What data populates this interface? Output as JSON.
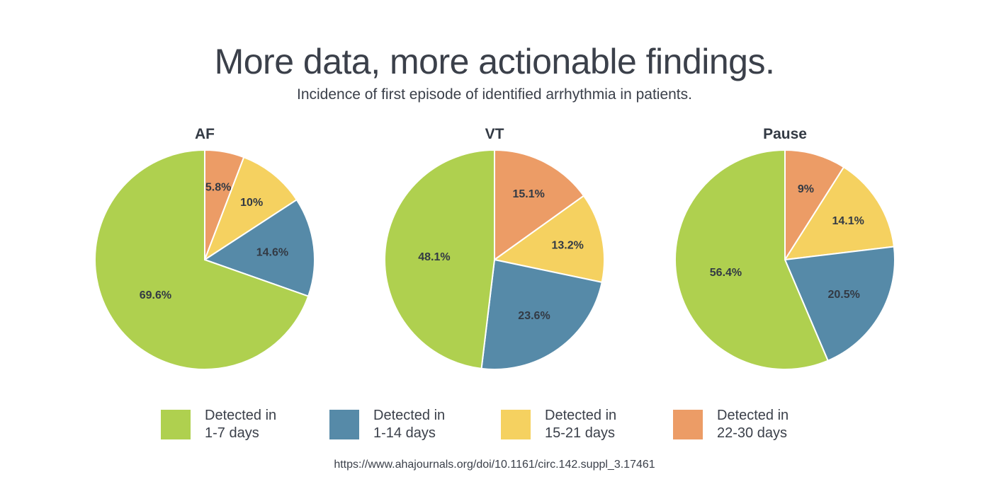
{
  "header": {
    "title": "More data, more actionable findings.",
    "subtitle": "Incidence of first episode of identified arrhythmia in patients."
  },
  "chart_data": [
    {
      "type": "pie",
      "title": "AF",
      "categories": [
        "Detected in 1-7 days",
        "Detected in 1-14 days",
        "Detected in 15-21 days",
        "Detected in 22-30 days"
      ],
      "values": [
        69.6,
        14.6,
        10,
        5.8
      ],
      "labels": [
        "69.6%",
        "14.6%",
        "10%",
        "5.8%"
      ]
    },
    {
      "type": "pie",
      "title": "VT",
      "categories": [
        "Detected in 1-7 days",
        "Detected in 1-14 days",
        "Detected in 15-21 days",
        "Detected in 22-30 days"
      ],
      "values": [
        48.1,
        23.6,
        13.2,
        15.1
      ],
      "labels": [
        "48.1%",
        "23.6%",
        "13.2%",
        "15.1%"
      ]
    },
    {
      "type": "pie",
      "title": "Pause",
      "categories": [
        "Detected in 1-7 days",
        "Detected in 1-14 days",
        "Detected in 15-21 days",
        "Detected in 22-30 days"
      ],
      "values": [
        56.4,
        20.5,
        14.1,
        9
      ],
      "labels": [
        "56.4%",
        "20.5%",
        "14.1%",
        "9%"
      ]
    }
  ],
  "colors": {
    "days_1_7": "#afd04f",
    "days_1_14": "#568aa8",
    "days_15_21": "#f5d160",
    "days_22_30": "#ec9c66"
  },
  "legend": [
    {
      "line1": "Detected in",
      "line2": "1-7 days",
      "color": "#afd04f"
    },
    {
      "line1": "Detected in",
      "line2": "1-14 days",
      "color": "#568aa8"
    },
    {
      "line1": "Detected in",
      "line2": "15-21 days",
      "color": "#f5d160"
    },
    {
      "line1": "Detected in",
      "line2": "22-30 days",
      "color": "#ec9c66"
    }
  ],
  "source": "https://www.ahajournals.org/doi/10.1161/circ.142.suppl_3.17461"
}
